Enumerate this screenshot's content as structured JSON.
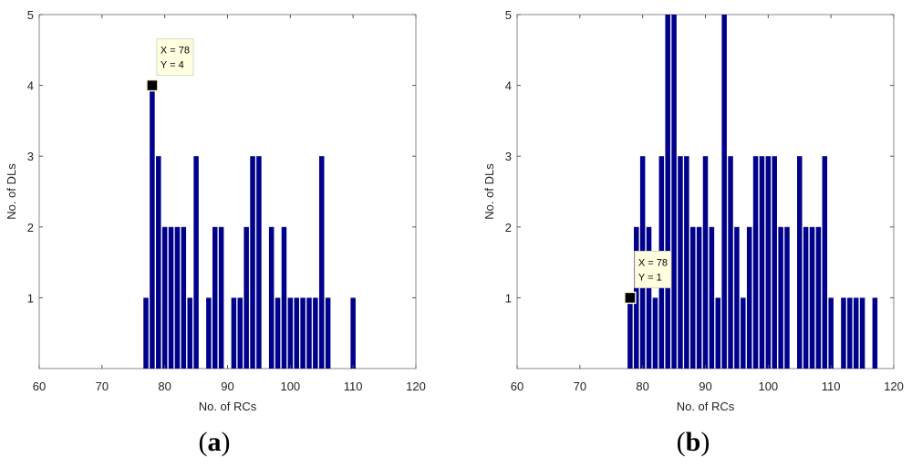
{
  "chart_data": [
    {
      "type": "bar",
      "panel_label": "a",
      "xlabel": "No. of RCs",
      "ylabel": "No. of DLs",
      "xlim": [
        60,
        120
      ],
      "ylim": [
        0,
        5
      ],
      "xticks": [
        60,
        70,
        80,
        90,
        100,
        110,
        120
      ],
      "yticks": [
        1,
        2,
        3,
        4,
        5
      ],
      "bar_color": "#00008b",
      "x": [
        77,
        78,
        79,
        80,
        81,
        82,
        83,
        84,
        85,
        87,
        88,
        89,
        91,
        92,
        93,
        94,
        95,
        97,
        98,
        99,
        100,
        101,
        102,
        103,
        104,
        105,
        106,
        110
      ],
      "values": [
        1,
        4,
        3,
        2,
        2,
        2,
        2,
        1,
        3,
        1,
        2,
        2,
        1,
        1,
        2,
        3,
        3,
        2,
        1,
        2,
        1,
        1,
        1,
        1,
        1,
        3,
        1,
        1
      ],
      "datatip": {
        "x": 78,
        "y": 4,
        "line1": "X = 78",
        "line2": "Y = 4",
        "placement": "above-right"
      }
    },
    {
      "type": "bar",
      "panel_label": "b",
      "xlabel": "No. of RCs",
      "ylabel": "No. of DLs",
      "xlim": [
        60,
        120
      ],
      "ylim": [
        0,
        5
      ],
      "xticks": [
        60,
        70,
        80,
        90,
        100,
        110,
        120
      ],
      "yticks": [
        1,
        2,
        3,
        4,
        5
      ],
      "bar_color": "#00008b",
      "x": [
        78,
        79,
        80,
        81,
        82,
        83,
        84,
        85,
        86,
        87,
        88,
        89,
        90,
        91,
        92,
        93,
        94,
        95,
        96,
        97,
        98,
        99,
        100,
        101,
        102,
        103,
        105,
        106,
        107,
        108,
        109,
        110,
        112,
        113,
        114,
        115,
        117
      ],
      "values": [
        1,
        2,
        3,
        2,
        1,
        3,
        5,
        5,
        3,
        3,
        2,
        2,
        3,
        2,
        1,
        5,
        3,
        2,
        1,
        2,
        3,
        3,
        3,
        3,
        2,
        2,
        3,
        2,
        2,
        2,
        3,
        1,
        1,
        1,
        1,
        1,
        1
      ],
      "datatip": {
        "x": 78,
        "y": 1,
        "line1": "X = 78",
        "line2": "Y = 1",
        "placement": "above-right"
      }
    }
  ]
}
